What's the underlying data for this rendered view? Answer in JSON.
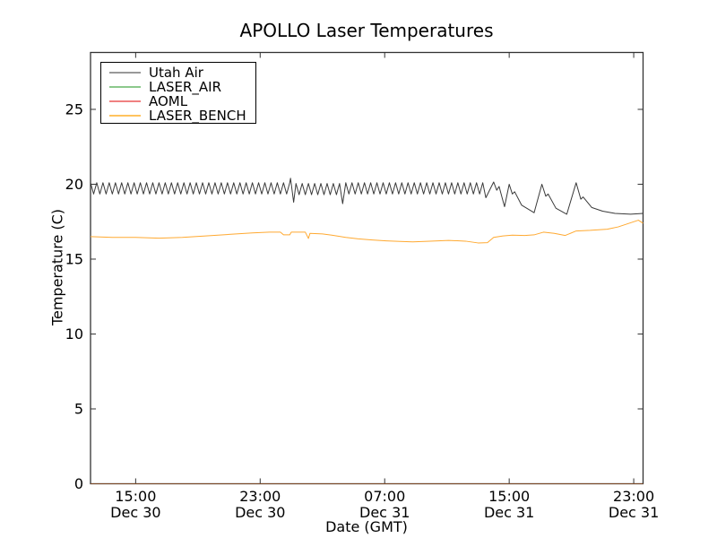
{
  "chart_data": {
    "type": "line",
    "title": "APOLLO Laser Temperatures",
    "xlabel": "Date (GMT)",
    "ylabel": "Temperature (C)",
    "x_unit_note": "hours relative to Dec 30 15:00 GMT",
    "xlim": [
      -2.9,
      32.6
    ],
    "ylim": [
      0,
      28.8
    ],
    "grid": false,
    "background_color": "#ffffff",
    "axis_color": "#333333",
    "x_ticks": [
      {
        "t": 0,
        "time": "15:00",
        "date": "Dec 30"
      },
      {
        "t": 8,
        "time": "23:00",
        "date": "Dec 30"
      },
      {
        "t": 16,
        "time": "07:00",
        "date": "Dec 31"
      },
      {
        "t": 24,
        "time": "15:00",
        "date": "Dec 31"
      },
      {
        "t": 32,
        "time": "23:00",
        "date": "Dec 31"
      }
    ],
    "y_ticks": [
      0,
      5,
      10,
      15,
      20,
      25
    ],
    "legend": {
      "position": "upper left",
      "entries": [
        "Utah Air",
        "LASER_AIR",
        "AOML",
        "LASER_BENCH"
      ]
    },
    "series": [
      {
        "name": "Utah Air",
        "color": "#3a3a3a",
        "legend_color": "#999999",
        "width": 1,
        "opacity": 1,
        "segments": [
          {
            "type": "zigzag",
            "t0": -2.9,
            "t1": 9.85,
            "period_h": 0.4,
            "low": 19.35,
            "high": 20.1
          },
          {
            "type": "points",
            "points": [
              [
                9.95,
                20.4
              ],
              [
                10.15,
                18.8
              ]
            ]
          },
          {
            "type": "zigzag",
            "t0": 10.3,
            "t1": 13.1,
            "period_h": 0.4,
            "low": 19.3,
            "high": 20.05
          },
          {
            "type": "points",
            "points": [
              [
                13.3,
                18.7
              ]
            ]
          },
          {
            "type": "zigzag",
            "t0": 13.5,
            "t1": 22.3,
            "period_h": 0.4,
            "low": 19.35,
            "high": 20.1
          },
          {
            "type": "points",
            "points": [
              [
                22.5,
                19.1
              ],
              [
                23.0,
                20.15
              ],
              [
                23.2,
                19.6
              ],
              [
                23.35,
                19.85
              ],
              [
                23.7,
                18.5
              ],
              [
                24.0,
                20.0
              ],
              [
                24.2,
                19.35
              ],
              [
                24.35,
                19.5
              ],
              [
                24.8,
                18.6
              ],
              [
                25.6,
                18.1
              ],
              [
                26.1,
                20.0
              ],
              [
                26.35,
                19.2
              ],
              [
                26.5,
                19.35
              ],
              [
                27.0,
                18.4
              ],
              [
                27.7,
                18.0
              ],
              [
                28.3,
                20.1
              ],
              [
                28.6,
                19.0
              ],
              [
                28.75,
                19.15
              ],
              [
                29.3,
                18.45
              ],
              [
                30.0,
                18.2
              ],
              [
                30.8,
                18.05
              ],
              [
                31.8,
                18.0
              ],
              [
                32.6,
                18.05
              ]
            ]
          }
        ]
      },
      {
        "name": "LASER_AIR",
        "color": "#2e8b2e",
        "legend_color": "#8cc98c",
        "width": 1,
        "opacity": 0.5,
        "segments": [
          {
            "type": "points",
            "points": [
              [
                -2.9,
                0
              ],
              [
                32.6,
                0
              ]
            ]
          }
        ]
      },
      {
        "name": "AOML",
        "color": "#dd3322",
        "legend_color": "#f08080",
        "width": 1,
        "opacity": 0.45,
        "segments": [
          {
            "type": "points",
            "points": [
              [
                -2.9,
                0
              ],
              [
                32.6,
                0
              ]
            ]
          }
        ]
      },
      {
        "name": "LASER_BENCH",
        "color": "#ffa931",
        "legend_color": "#ffc35e",
        "width": 1,
        "opacity": 1,
        "segments": [
          {
            "type": "points",
            "points": [
              [
                -2.9,
                16.5
              ],
              [
                -1.5,
                16.45
              ],
              [
                0,
                16.45
              ],
              [
                1.5,
                16.4
              ],
              [
                3,
                16.45
              ],
              [
                4.5,
                16.55
              ],
              [
                6,
                16.65
              ],
              [
                7.5,
                16.75
              ],
              [
                8.6,
                16.8
              ],
              [
                9.3,
                16.8
              ],
              [
                9.5,
                16.62
              ],
              [
                9.9,
                16.62
              ],
              [
                10.0,
                16.8
              ],
              [
                10.9,
                16.8
              ],
              [
                11.1,
                16.38
              ],
              [
                11.2,
                16.72
              ],
              [
                12.0,
                16.68
              ],
              [
                12.6,
                16.6
              ],
              [
                13.5,
                16.45
              ],
              [
                14.3,
                16.35
              ],
              [
                15.2,
                16.28
              ],
              [
                16.1,
                16.22
              ],
              [
                17.0,
                16.18
              ],
              [
                17.8,
                16.15
              ],
              [
                18.9,
                16.2
              ],
              [
                20.1,
                16.25
              ],
              [
                21.2,
                16.2
              ],
              [
                22.0,
                16.08
              ],
              [
                22.6,
                16.1
              ],
              [
                23.0,
                16.45
              ],
              [
                23.6,
                16.55
              ],
              [
                24.2,
                16.6
              ],
              [
                25.0,
                16.58
              ],
              [
                25.6,
                16.62
              ],
              [
                26.2,
                16.8
              ],
              [
                26.9,
                16.72
              ],
              [
                27.6,
                16.58
              ],
              [
                28.3,
                16.88
              ],
              [
                29.2,
                16.92
              ],
              [
                30.3,
                17.0
              ],
              [
                31.0,
                17.15
              ],
              [
                32.3,
                17.6
              ],
              [
                32.6,
                17.4
              ]
            ]
          }
        ]
      }
    ]
  }
}
